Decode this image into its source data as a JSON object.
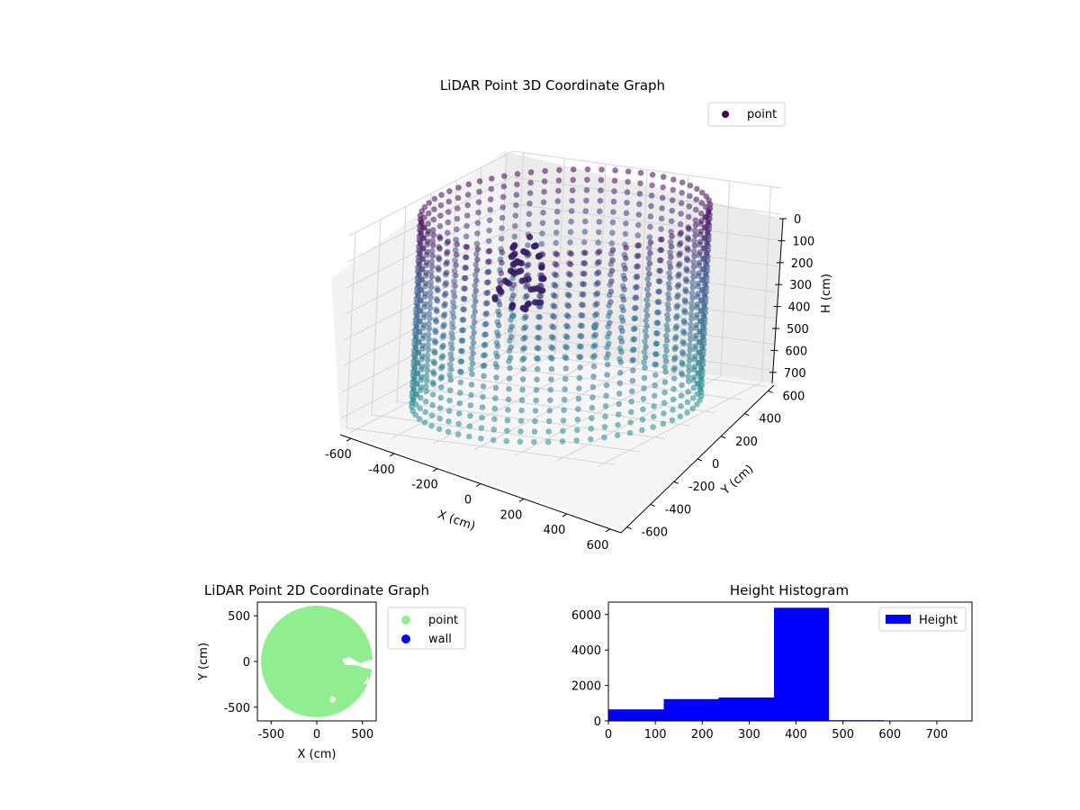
{
  "chart_data": [
    {
      "type": "scatter",
      "projection": "3d",
      "title": "LiDAR Point 3D Coordinate Graph",
      "xlabel": "X (cm)",
      "ylabel": "Y (cm)",
      "zlabel": "H (cm)",
      "xlim": [
        -650,
        650
      ],
      "ylim": [
        -650,
        650
      ],
      "zlim": [
        0,
        750
      ],
      "zinverted": true,
      "xticks": [
        -600,
        -400,
        -200,
        0,
        200,
        400,
        600
      ],
      "yticks": [
        -600,
        -400,
        -200,
        0,
        200,
        400,
        600
      ],
      "zticks": [
        0,
        100,
        200,
        300,
        400,
        500,
        600,
        700
      ],
      "legend": {
        "entries": [
          "point"
        ],
        "placement": "upper-right"
      },
      "colormap": "viridis",
      "grid": true,
      "series": [
        {
          "name": "point",
          "shape": "cylindrical-wall",
          "center": [
            0,
            0
          ],
          "radius": 600,
          "height_range": [
            0,
            740
          ],
          "outliers": [
            {
              "x": 620,
              "y": -200,
              "h": 620
            },
            {
              "x": 560,
              "y": -560,
              "h": 600
            }
          ]
        }
      ]
    },
    {
      "type": "scatter",
      "title": "LiDAR Point 2D Coordinate Graph",
      "xlabel": "X (cm)",
      "ylabel": "Y (cm)",
      "xlim": [
        -650,
        650
      ],
      "ylim": [
        -650,
        650
      ],
      "xticks": [
        -500,
        0,
        500
      ],
      "yticks": [
        -500,
        0,
        500
      ],
      "legend": {
        "entries": [
          "point",
          "wall"
        ],
        "placement": "outside-right"
      },
      "series": [
        {
          "name": "point",
          "color": "#90ee90",
          "shape": "disk",
          "center": [
            0,
            0
          ],
          "radius": 610
        },
        {
          "name": "wall",
          "color": "#0000ff",
          "points": []
        }
      ]
    },
    {
      "type": "bar",
      "title": "Height Histogram",
      "xlim": [
        0,
        775
      ],
      "ylim": [
        0,
        6700
      ],
      "xticks": [
        0,
        100,
        200,
        300,
        400,
        500,
        600,
        700
      ],
      "yticks": [
        0,
        2000,
        4000,
        6000
      ],
      "legend": {
        "entries": [
          "Height"
        ],
        "placement": "upper-right"
      },
      "series": [
        {
          "name": "Height",
          "color": "#0000ff",
          "bin_edges": [
            0,
            118,
            235,
            353,
            470,
            588,
            705
          ],
          "values": [
            650,
            1230,
            1320,
            6380,
            40,
            8
          ]
        }
      ]
    }
  ]
}
